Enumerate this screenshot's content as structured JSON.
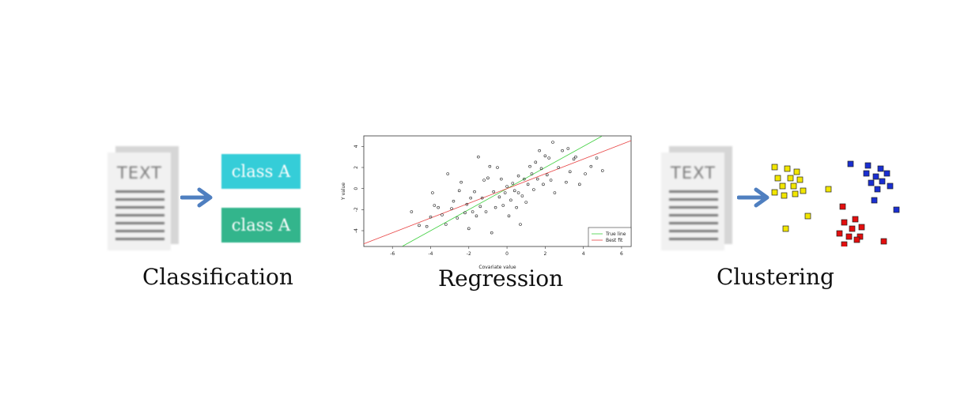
{
  "classification": {
    "doc_text": "TEXT",
    "class_top": "class A",
    "class_bottom": "class A",
    "label": "Classification",
    "colors": {
      "top": "#35cdd8",
      "bottom": "#33b58c",
      "arrow": "#4f7fc0"
    }
  },
  "regression": {
    "label": "Regression",
    "chart_data": {
      "type": "scatter",
      "xlabel": "Covariate value",
      "ylabel": "Y value",
      "xlim": [
        -7.5,
        6.5
      ],
      "ylim": [
        -5.5,
        5
      ],
      "xticks": [
        "-6",
        "-4",
        "-2",
        "0",
        "2",
        "4",
        "6"
      ],
      "yticks": [
        "-4",
        "-2",
        "0",
        "2",
        "4"
      ],
      "legend": [
        "True line",
        "Best fit"
      ],
      "legend_position": "bottom-right",
      "lines": [
        {
          "name": "True line",
          "color": "#3fcf3f",
          "slope": 1.0,
          "intercept": 0.0
        },
        {
          "name": "Best fit",
          "color": "#e84545",
          "slope": 0.7,
          "intercept": 0.0
        }
      ],
      "points": [
        [
          -5,
          -2.2
        ],
        [
          -4.6,
          -3.5
        ],
        [
          -4.2,
          -3.6
        ],
        [
          -4,
          -2.7
        ],
        [
          -3.8,
          -1.6
        ],
        [
          -3.6,
          -1.8
        ],
        [
          -3.4,
          -2.5
        ],
        [
          -3.2,
          -3.4
        ],
        [
          -3.1,
          1.4
        ],
        [
          -2.9,
          -1.9
        ],
        [
          -2.8,
          -1.2
        ],
        [
          -2.6,
          -2.8
        ],
        [
          -2.5,
          -0.2
        ],
        [
          -2.4,
          0.6
        ],
        [
          -2.2,
          -2.3
        ],
        [
          -2.1,
          -1.5
        ],
        [
          -2,
          -3.8
        ],
        [
          -1.9,
          -0.9
        ],
        [
          -1.8,
          -2.2
        ],
        [
          -1.7,
          -0.3
        ],
        [
          -1.6,
          -2.6
        ],
        [
          -1.5,
          3
        ],
        [
          -1.4,
          -1.7
        ],
        [
          -1.3,
          -0.9
        ],
        [
          -1.2,
          0.8
        ],
        [
          -1.1,
          -2.2
        ],
        [
          -1,
          1
        ],
        [
          -0.9,
          2.1
        ],
        [
          -0.8,
          -4.2
        ],
        [
          -0.7,
          -0.3
        ],
        [
          -0.6,
          -1.8
        ],
        [
          -0.5,
          2
        ],
        [
          -0.4,
          -0.8
        ],
        [
          -0.3,
          0.9
        ],
        [
          -0.2,
          -1.6
        ],
        [
          -0.1,
          -0.4
        ],
        [
          0,
          0.2
        ],
        [
          0.1,
          -2.6
        ],
        [
          0.2,
          -1.1
        ],
        [
          0.3,
          0.5
        ],
        [
          0.4,
          -0.2
        ],
        [
          0.5,
          -1.8
        ],
        [
          0.6,
          1.2
        ],
        [
          0.6,
          -0.4
        ],
        [
          0.7,
          -3.4
        ],
        [
          0.8,
          -0.7
        ],
        [
          0.9,
          0.9
        ],
        [
          1,
          -1.3
        ],
        [
          1.1,
          0.4
        ],
        [
          1.2,
          2.1
        ],
        [
          1.3,
          1.4
        ],
        [
          1.4,
          -0.1
        ],
        [
          1.5,
          2.5
        ],
        [
          1.6,
          0.9
        ],
        [
          1.7,
          3.6
        ],
        [
          1.8,
          1.9
        ],
        [
          1.9,
          0.4
        ],
        [
          2,
          3.1
        ],
        [
          2.1,
          1.3
        ],
        [
          2.2,
          2.9
        ],
        [
          2.3,
          0.8
        ],
        [
          2.5,
          -0.4
        ],
        [
          2.7,
          2
        ],
        [
          2.9,
          3.6
        ],
        [
          3.1,
          0.6
        ],
        [
          3.2,
          3.8
        ],
        [
          3.3,
          1.6
        ],
        [
          3.5,
          2.8
        ],
        [
          3.6,
          3
        ],
        [
          3.8,
          0.4
        ],
        [
          4.1,
          1.4
        ],
        [
          4.4,
          2.1
        ],
        [
          4.7,
          2.9
        ],
        [
          5,
          1.7
        ],
        [
          -3.9,
          -0.4
        ],
        [
          2.4,
          4.4
        ]
      ]
    }
  },
  "clustering": {
    "doc_text": "TEXT",
    "label": "Clustering",
    "colors": {
      "yellow": "#f2e600",
      "blue": "#1a2fd1",
      "red": "#e30e0e",
      "arrow": "#4f7fc0"
    },
    "chart_data": {
      "type": "scatter",
      "series": [
        {
          "color": "yellow",
          "points": [
            [
              10,
              10
            ],
            [
              26,
              12
            ],
            [
              38,
              16
            ],
            [
              14,
              24
            ],
            [
              30,
              24
            ],
            [
              42,
              26
            ],
            [
              20,
              34
            ],
            [
              34,
              34
            ],
            [
              46,
              40
            ],
            [
              10,
              42
            ],
            [
              22,
              46
            ],
            [
              36,
              44
            ],
            [
              78,
              38
            ],
            [
              52,
              72
            ],
            [
              24,
              88
            ]
          ]
        },
        {
          "color": "blue",
          "points": [
            [
              106,
              6
            ],
            [
              128,
              8
            ],
            [
              144,
              12
            ],
            [
              126,
              18
            ],
            [
              152,
              18
            ],
            [
              138,
              22
            ],
            [
              146,
              28
            ],
            [
              132,
              30
            ],
            [
              156,
              34
            ],
            [
              140,
              38
            ],
            [
              136,
              52
            ],
            [
              164,
              64
            ]
          ]
        },
        {
          "color": "red",
          "points": [
            [
              96,
              60
            ],
            [
              112,
              76
            ],
            [
              98,
              80
            ],
            [
              108,
              88
            ],
            [
              120,
              86
            ],
            [
              92,
              94
            ],
            [
              104,
              98
            ],
            [
              118,
              98
            ],
            [
              98,
              108
            ],
            [
              148,
              104
            ],
            [
              114,
              102
            ]
          ]
        }
      ]
    }
  }
}
